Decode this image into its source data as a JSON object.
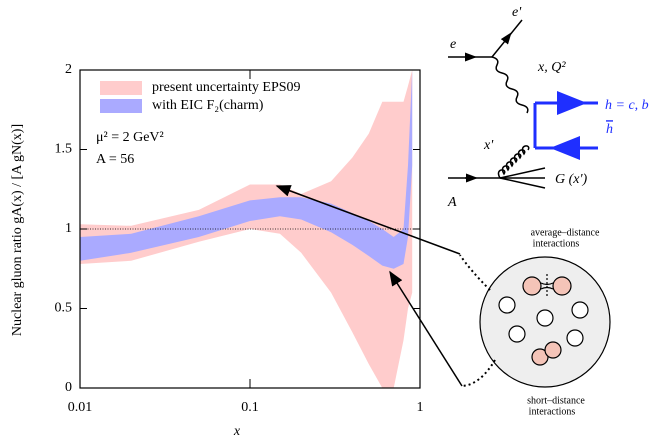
{
  "chart_data": {
    "type": "band",
    "xlabel": "x",
    "ylabel": "Nuclear gluon ratio  gA(x) / [A gN(x)]",
    "xlim": [
      0.01,
      1
    ],
    "xticks": [
      0.01,
      0.1,
      1
    ],
    "xscale": "log",
    "ylim": [
      0,
      2
    ],
    "yticks": [
      0,
      0.5,
      1,
      1.5,
      2
    ],
    "hline": 1,
    "annotations": [
      "μ² = 2 GeV²",
      "A = 56"
    ],
    "x": [
      0.01,
      0.02,
      0.05,
      0.1,
      0.15,
      0.2,
      0.3,
      0.4,
      0.5,
      0.6,
      0.7,
      0.8,
      0.85,
      0.9
    ],
    "series": [
      {
        "name": "present uncertainty EPS09",
        "color": "#ffcccc",
        "lower": [
          0.78,
          0.8,
          0.92,
          1.0,
          0.97,
          0.85,
          0.6,
          0.35,
          0.15,
          0,
          0,
          0.3,
          0.5,
          0.6
        ],
        "upper": [
          1.03,
          1.02,
          1.12,
          1.28,
          1.28,
          1.22,
          1.3,
          1.45,
          1.6,
          1.8,
          1.8,
          1.8,
          1.9,
          2.0
        ]
      },
      {
        "name": "with EIC F₂(charm)",
        "color": "#aaaaff",
        "lower": [
          0.8,
          0.85,
          0.95,
          1.05,
          1.08,
          1.06,
          0.98,
          0.9,
          0.83,
          0.77,
          0.75,
          0.78,
          0.95,
          1.4
        ],
        "upper": [
          0.95,
          0.97,
          1.08,
          1.18,
          1.2,
          1.2,
          1.16,
          1.1,
          1.05,
          1.0,
          0.95,
          1.0,
          1.4,
          2.0
        ]
      }
    ]
  },
  "diagram": {
    "e": "e",
    "e_prime": "e'",
    "photon": "x, Q²",
    "quark": "h = c, b",
    "antiquark": "h",
    "x_prime": "x'",
    "gluon": "G (x')",
    "nucleus": "A",
    "average": [
      "average–distance",
      "interactions"
    ],
    "short": [
      "short–distance",
      "interactions"
    ]
  }
}
